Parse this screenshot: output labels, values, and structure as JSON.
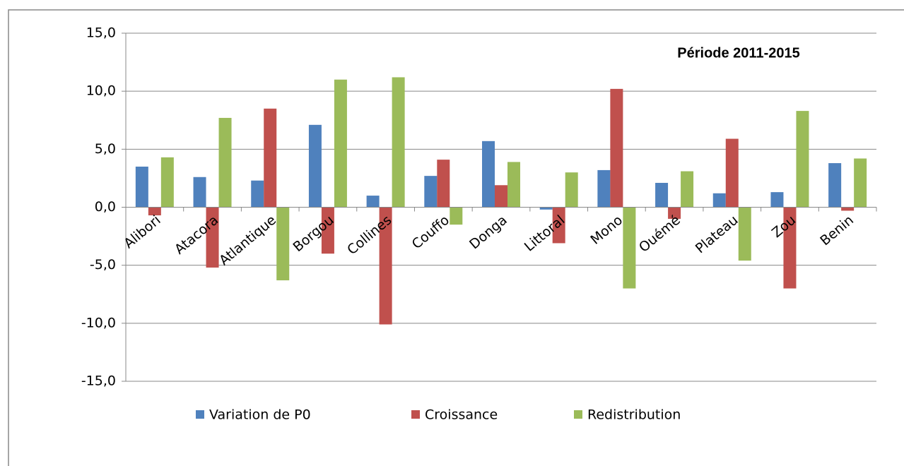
{
  "chart_data": {
    "type": "bar",
    "annotation": "Période 2011-2015",
    "categories": [
      "Alibori",
      "Atacora",
      "Atlantique",
      "Borgou",
      "Collines",
      "Couffo",
      "Donga",
      "Littoral",
      "Mono",
      "Ouémé",
      "Plateau",
      "Zou",
      "Benin"
    ],
    "series": [
      {
        "name": "Variation de P0",
        "color": "#4f81bd",
        "values": [
          3.5,
          2.6,
          2.3,
          7.1,
          1.0,
          2.7,
          5.7,
          -0.2,
          3.2,
          2.1,
          1.2,
          1.3,
          3.8
        ]
      },
      {
        "name": "Croissance",
        "color": "#c0504d",
        "values": [
          -0.7,
          -5.2,
          8.5,
          -4.0,
          -10.1,
          4.1,
          1.9,
          -3.1,
          10.2,
          -1.0,
          5.9,
          -7.0,
          -0.3
        ]
      },
      {
        "name": "Redistribution",
        "color": "#9bbb59",
        "values": [
          4.3,
          7.7,
          -6.3,
          11.0,
          11.2,
          -1.5,
          3.9,
          3.0,
          -7.0,
          3.1,
          -4.6,
          8.3,
          4.2
        ]
      }
    ],
    "ylim": [
      -15,
      15
    ],
    "yticks": [
      {
        "value": -15,
        "label": "-15,0"
      },
      {
        "value": -10,
        "label": "-10,0"
      },
      {
        "value": -5,
        "label": "-5,0"
      },
      {
        "value": 0,
        "label": "0,0"
      },
      {
        "value": 5,
        "label": "5,0"
      },
      {
        "value": 10,
        "label": "10,0"
      },
      {
        "value": 15,
        "label": "15,0"
      }
    ],
    "grid": true,
    "legend": "bottom"
  }
}
